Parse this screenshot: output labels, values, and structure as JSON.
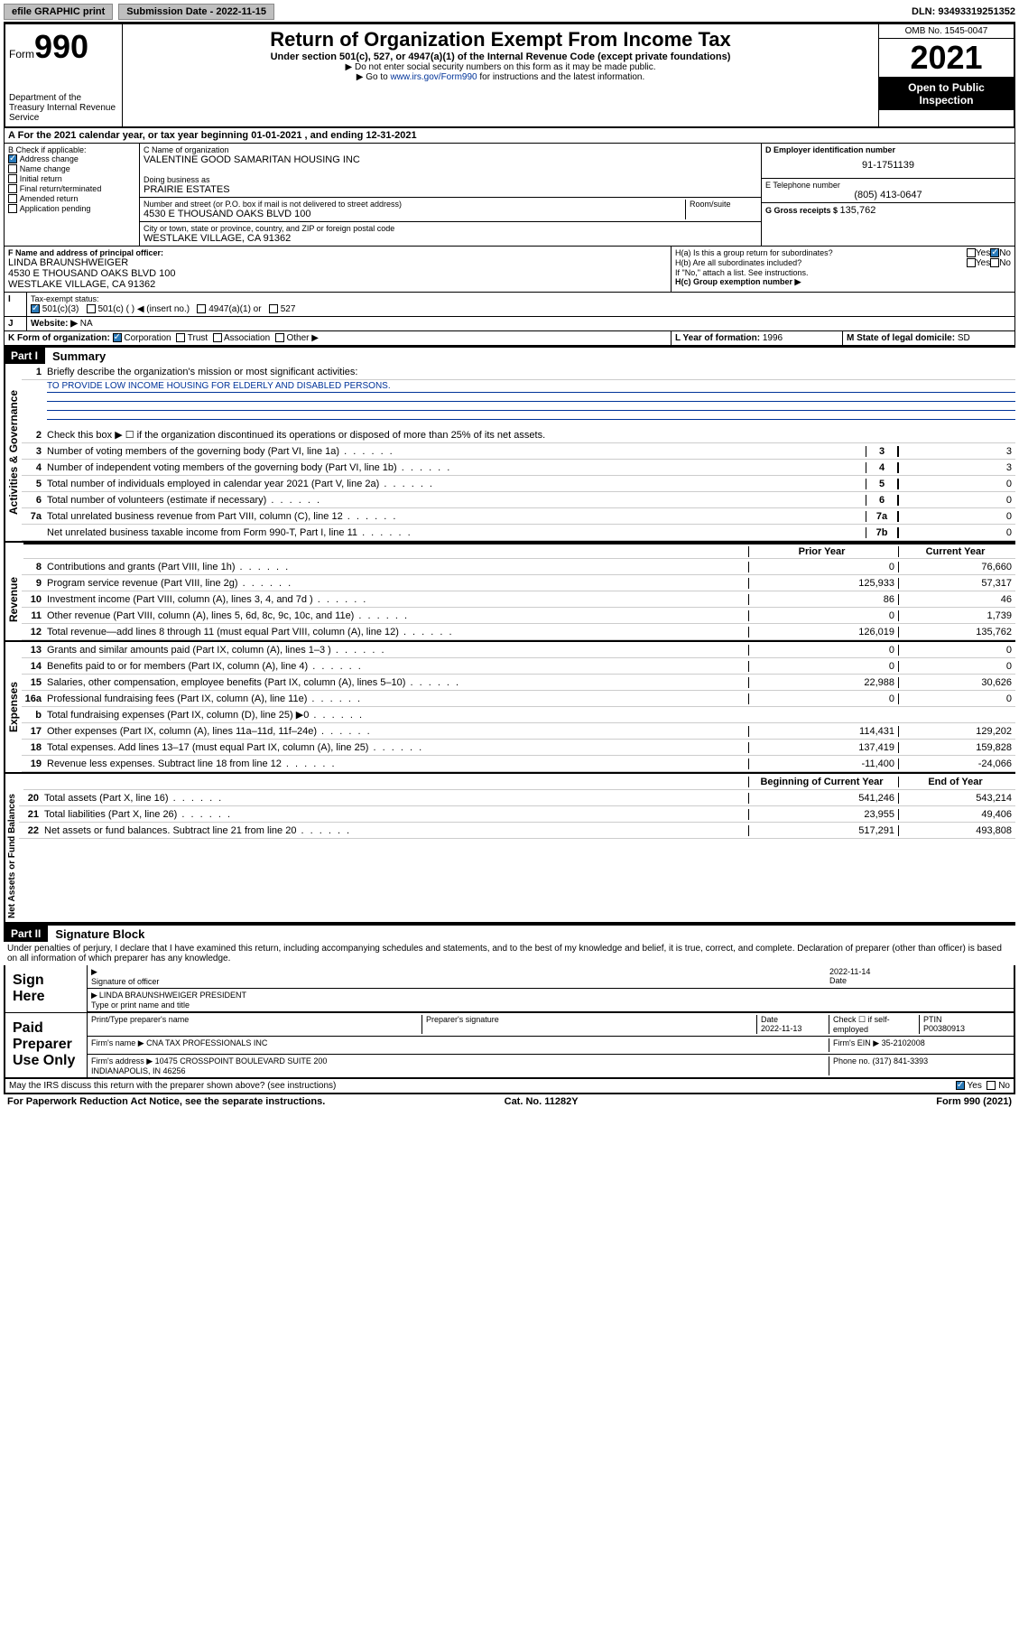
{
  "topbar": {
    "efile": "efile GRAPHIC print",
    "sub_label": "Submission Date - ",
    "sub_date": "2022-11-15",
    "dln_label": "DLN: ",
    "dln": "93493319251352"
  },
  "header": {
    "form_word": "Form",
    "form_num": "990",
    "dept": "Department of the Treasury\nInternal Revenue Service",
    "title": "Return of Organization Exempt From Income Tax",
    "sub1": "Under section 501(c), 527, or 4947(a)(1) of the Internal Revenue Code (except private foundations)",
    "sub2": "▶ Do not enter social security numbers on this form as it may be made public.",
    "sub3_pre": "▶ Go to ",
    "sub3_link": "www.irs.gov/Form990",
    "sub3_post": " for instructions and the latest information.",
    "omb": "OMB No. 1545-0047",
    "year": "2021",
    "open": "Open to Public Inspection"
  },
  "periodA": "For the 2021 calendar year, or tax year beginning 01-01-2021   , and ending 12-31-2021",
  "boxB": {
    "label": "B Check if applicable:",
    "items": [
      {
        "txt": "Address change",
        "on": true
      },
      {
        "txt": "Name change",
        "on": false
      },
      {
        "txt": "Initial return",
        "on": false
      },
      {
        "txt": "Final return/terminated",
        "on": false
      },
      {
        "txt": "Amended return",
        "on": false
      },
      {
        "txt": "Application pending",
        "on": false
      }
    ]
  },
  "boxC": {
    "name_lbl": "C Name of organization",
    "name": "VALENTINE GOOD SAMARITAN HOUSING INC",
    "dba_lbl": "Doing business as",
    "dba": "PRAIRIE ESTATES",
    "street_lbl": "Number and street (or P.O. box if mail is not delivered to street address)",
    "room_lbl": "Room/suite",
    "street": "4530 E THOUSAND OAKS BLVD 100",
    "city_lbl": "City or town, state or province, country, and ZIP or foreign postal code",
    "city": "WESTLAKE VILLAGE, CA  91362"
  },
  "boxD": {
    "lbl": "D Employer identification number",
    "val": "91-1751139"
  },
  "boxE": {
    "lbl": "E Telephone number",
    "val": "(805) 413-0647"
  },
  "boxG": {
    "lbl": "G Gross receipts $ ",
    "val": "135,762"
  },
  "boxF": {
    "lbl": "F Name and address of principal officer:",
    "name": "LINDA BRAUNSHWEIGER",
    "addr1": "4530 E THOUSAND OAKS BLVD 100",
    "addr2": "WESTLAKE VILLAGE, CA  91362"
  },
  "boxH": {
    "ha": "H(a)  Is this a group return for subordinates?",
    "hb": "H(b)  Are all subordinates included?",
    "note": "If \"No,\" attach a list. See instructions.",
    "hc": "H(c)  Group exemption number ▶",
    "yes": "Yes",
    "no": "No"
  },
  "boxI": {
    "lbl": "Tax-exempt status:",
    "o1": "501(c)(3)",
    "o2": "501(c) (  ) ◀ (insert no.)",
    "o3": "4947(a)(1) or",
    "o4": "527"
  },
  "boxJ": {
    "lbl": "Website: ▶",
    "val": "NA"
  },
  "boxK": {
    "lbl": "K Form of organization:",
    "o1": "Corporation",
    "o2": "Trust",
    "o3": "Association",
    "o4": "Other ▶"
  },
  "boxL": {
    "lbl": "L Year of formation: ",
    "val": "1996"
  },
  "boxM": {
    "lbl": "M State of legal domicile: ",
    "val": "SD"
  },
  "part1": {
    "num": "Part I",
    "title": "Summary"
  },
  "summary": {
    "l1_lbl": "Briefly describe the organization's mission or most significant activities:",
    "l1_val": "TO PROVIDE LOW INCOME HOUSING FOR ELDERLY AND DISABLED PERSONS.",
    "l2": "Check this box ▶ ☐  if the organization discontinued its operations or disposed of more than 25% of its net assets.",
    "rows_ag": [
      {
        "n": "3",
        "t": "Number of voting members of the governing body (Part VI, line 1a)",
        "c": "3",
        "v": "3"
      },
      {
        "n": "4",
        "t": "Number of independent voting members of the governing body (Part VI, line 1b)",
        "c": "4",
        "v": "3"
      },
      {
        "n": "5",
        "t": "Total number of individuals employed in calendar year 2021 (Part V, line 2a)",
        "c": "5",
        "v": "0"
      },
      {
        "n": "6",
        "t": "Total number of volunteers (estimate if necessary)",
        "c": "6",
        "v": "0"
      },
      {
        "n": "7a",
        "t": "Total unrelated business revenue from Part VIII, column (C), line 12",
        "c": "7a",
        "v": "0"
      },
      {
        "n": "",
        "t": "Net unrelated business taxable income from Form 990-T, Part I, line 11",
        "c": "7b",
        "v": "0"
      }
    ],
    "colhdr_prior": "Prior Year",
    "colhdr_curr": "Current Year",
    "rows_rev": [
      {
        "n": "8",
        "t": "Contributions and grants (Part VIII, line 1h)",
        "p": "0",
        "c": "76,660"
      },
      {
        "n": "9",
        "t": "Program service revenue (Part VIII, line 2g)",
        "p": "125,933",
        "c": "57,317"
      },
      {
        "n": "10",
        "t": "Investment income (Part VIII, column (A), lines 3, 4, and 7d )",
        "p": "86",
        "c": "46"
      },
      {
        "n": "11",
        "t": "Other revenue (Part VIII, column (A), lines 5, 6d, 8c, 9c, 10c, and 11e)",
        "p": "0",
        "c": "1,739"
      },
      {
        "n": "12",
        "t": "Total revenue—add lines 8 through 11 (must equal Part VIII, column (A), line 12)",
        "p": "126,019",
        "c": "135,762"
      }
    ],
    "rows_exp": [
      {
        "n": "13",
        "t": "Grants and similar amounts paid (Part IX, column (A), lines 1–3 )",
        "p": "0",
        "c": "0"
      },
      {
        "n": "14",
        "t": "Benefits paid to or for members (Part IX, column (A), line 4)",
        "p": "0",
        "c": "0"
      },
      {
        "n": "15",
        "t": "Salaries, other compensation, employee benefits (Part IX, column (A), lines 5–10)",
        "p": "22,988",
        "c": "30,626"
      },
      {
        "n": "16a",
        "t": "Professional fundraising fees (Part IX, column (A), line 11e)",
        "p": "0",
        "c": "0"
      },
      {
        "n": "b",
        "t": "Total fundraising expenses (Part IX, column (D), line 25) ▶0",
        "p": "",
        "c": "",
        "shade": true
      },
      {
        "n": "17",
        "t": "Other expenses (Part IX, column (A), lines 11a–11d, 11f–24e)",
        "p": "114,431",
        "c": "129,202"
      },
      {
        "n": "18",
        "t": "Total expenses. Add lines 13–17 (must equal Part IX, column (A), line 25)",
        "p": "137,419",
        "c": "159,828"
      },
      {
        "n": "19",
        "t": "Revenue less expenses. Subtract line 18 from line 12",
        "p": "-11,400",
        "c": "-24,066"
      }
    ],
    "colhdr_beg": "Beginning of Current Year",
    "colhdr_end": "End of Year",
    "rows_na": [
      {
        "n": "20",
        "t": "Total assets (Part X, line 16)",
        "p": "541,246",
        "c": "543,214"
      },
      {
        "n": "21",
        "t": "Total liabilities (Part X, line 26)",
        "p": "23,955",
        "c": "49,406"
      },
      {
        "n": "22",
        "t": "Net assets or fund balances. Subtract line 21 from line 20",
        "p": "517,291",
        "c": "493,808"
      }
    ]
  },
  "vlabels": {
    "ag": "Activities & Governance",
    "rev": "Revenue",
    "exp": "Expenses",
    "na": "Net Assets or\nFund Balances"
  },
  "part2": {
    "num": "Part II",
    "title": "Signature Block"
  },
  "sig": {
    "decl": "Under penalties of perjury, I declare that I have examined this return, including accompanying schedules and statements, and to the best of my knowledge and belief, it is true, correct, and complete. Declaration of preparer (other than officer) is based on all information of which preparer has any knowledge.",
    "sign_here": "Sign Here",
    "sig_officer": "Signature of officer",
    "date_lbl": "Date",
    "sig_date": "2022-11-14",
    "officer_name": "LINDA BRAUNSHWEIGER  PRESIDENT",
    "type_name": "Type or print name and title",
    "paid": "Paid Preparer Use Only",
    "prep_name_lbl": "Print/Type preparer's name",
    "prep_sig_lbl": "Preparer's signature",
    "prep_date_lbl": "Date",
    "prep_date": "2022-11-13",
    "chk_lbl": "Check ☐ if self-employed",
    "ptin_lbl": "PTIN",
    "ptin": "P00380913",
    "firm_name_lbl": "Firm's name   ▶",
    "firm_name": "CNA TAX PROFESSIONALS INC",
    "firm_ein_lbl": "Firm's EIN ▶",
    "firm_ein": "35-2102008",
    "firm_addr_lbl": "Firm's address ▶",
    "firm_addr": "10475 CROSSPOINT BOULEVARD SUITE 200\nINDIANAPOLIS, IN  46256",
    "phone_lbl": "Phone no. ",
    "phone": "(317) 841-3393",
    "discuss": "May the IRS discuss this return with the preparer shown above? (see instructions)",
    "yes": "Yes",
    "no": "No"
  },
  "footer": {
    "l": "For Paperwork Reduction Act Notice, see the separate instructions.",
    "c": "Cat. No. 11282Y",
    "r": "Form 990 (2021)"
  }
}
